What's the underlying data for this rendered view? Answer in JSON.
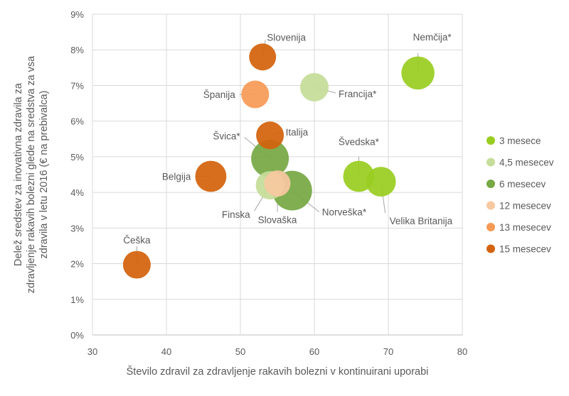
{
  "chart_data": {
    "type": "scatter",
    "subtype": "bubble",
    "title": "",
    "xlabel": "Število zdravil za zdravljenje rakavih bolezni v kontinuirani uporabi",
    "ylabel": "Delež sredstev za inovativna zdravila za zdravljenje rakavih bolezni glede na sredstva za vsa zdravila v letu 2016 (€ na prebivalca)",
    "xlim": [
      30,
      80
    ],
    "ylim": [
      0,
      9
    ],
    "x_ticks": [
      "30",
      "40",
      "50",
      "60",
      "70",
      "80"
    ],
    "y_ticks": [
      "0%",
      "1%",
      "2%",
      "3%",
      "4%",
      "5%",
      "6%",
      "7%",
      "8%",
      "9%"
    ],
    "grid": true,
    "legend_position": "right",
    "series": [
      {
        "name": "3 mesece",
        "color": "#9acd21",
        "points": [
          {
            "label": "Nemčija*",
            "x": 74,
            "y": 7.35,
            "size": 1.35
          },
          {
            "label": "Švedska*",
            "x": 66,
            "y": 4.45,
            "size": 1.2
          },
          {
            "label": "Velika Britanija",
            "x": 69,
            "y": 4.3,
            "size": 1.1
          }
        ]
      },
      {
        "name": "4,5 mesecev",
        "color": "#c5dd99",
        "points": [
          {
            "label": "Francija*",
            "x": 60,
            "y": 6.95,
            "size": 1.0
          },
          {
            "label": "Finska",
            "x": 54,
            "y": 4.2,
            "size": 1.0
          }
        ]
      },
      {
        "name": "6 mesecev",
        "color": "#76a844",
        "points": [
          {
            "label": "Švica*",
            "x": 54,
            "y": 4.95,
            "size": 1.75
          },
          {
            "label": "Norveška*",
            "x": 57,
            "y": 4.05,
            "size": 1.95
          }
        ]
      },
      {
        "name": "12 mesecev",
        "color": "#f8c8a0",
        "points": [
          {
            "label": "Slovaška",
            "x": 55,
            "y": 4.25,
            "size": 0.85
          }
        ]
      },
      {
        "name": "13 mesecev",
        "color": "#f69a56",
        "points": [
          {
            "label": "Španija",
            "x": 52,
            "y": 6.75,
            "size": 0.95
          }
        ]
      },
      {
        "name": "15 mesecev",
        "color": "#d3630d",
        "points": [
          {
            "label": "Slovenija",
            "x": 53,
            "y": 7.8,
            "size": 0.9
          },
          {
            "label": "Italija",
            "x": 54,
            "y": 5.6,
            "size": 0.95
          },
          {
            "label": "Belgija",
            "x": 46,
            "y": 4.45,
            "size": 1.2
          },
          {
            "label": "Češka",
            "x": 36,
            "y": 1.97,
            "size": 0.95
          }
        ]
      }
    ]
  }
}
